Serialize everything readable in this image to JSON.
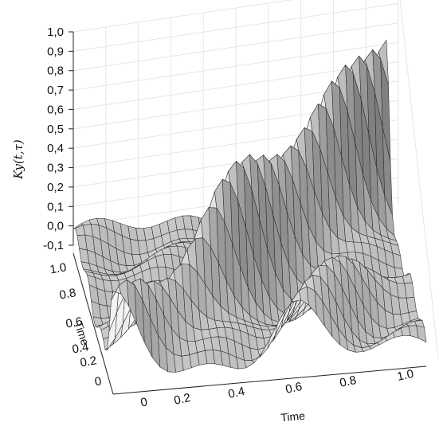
{
  "chart_data": {
    "type": "surface3d",
    "title": "",
    "zlabel": "Ky(t,τ)",
    "xlabel": "Time",
    "ylabel": "Time",
    "zlim": [
      -0.1,
      1.0
    ],
    "xlim": [
      0,
      1.0
    ],
    "ylim": [
      0,
      1.0
    ],
    "z_ticks": [
      "1,0",
      "0,9",
      "0,8",
      "0,7",
      "0,6",
      "0,5",
      "0,4",
      "0,3",
      "0,2",
      "0,1",
      "0,0",
      "-0,1"
    ],
    "x_ticks": [
      "0",
      "0.2",
      "0.4",
      "0.6",
      "0.8",
      "1.0"
    ],
    "y_ticks": [
      "0",
      "0.2",
      "0.4",
      "0.6",
      "0.8",
      "1.0"
    ],
    "grid": true,
    "color_scheme": "grayscale",
    "mesh_color": "#2a2a2a",
    "surface": {
      "description_kind": "sampled",
      "x_samples": 41,
      "y_samples": 21,
      "diagonal_ridge_peak": 1.0,
      "secondary_ridge_peak": 0.35,
      "min_value": -0.1
    }
  }
}
